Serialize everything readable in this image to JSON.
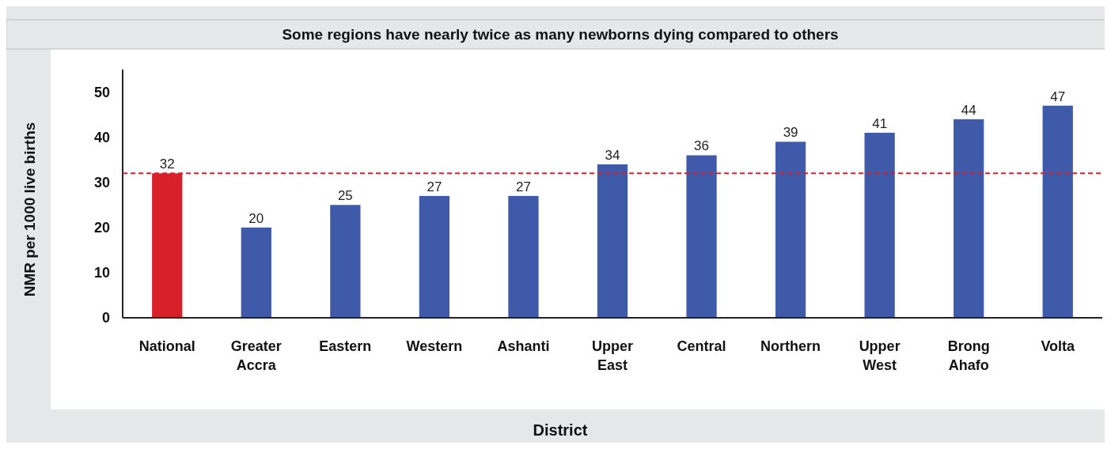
{
  "chart_data": {
    "type": "bar",
    "title": "Some regions have nearly twice as many newborns dying compared to others",
    "xlabel": "District",
    "ylabel": "NMR per 1000 live births",
    "categories": [
      "National",
      "Greater Accra",
      "Eastern",
      "Western",
      "Ashanti",
      "Upper East",
      "Central",
      "Northern",
      "Upper West",
      "Brong Ahafo",
      "Volta"
    ],
    "values": [
      32,
      20,
      25,
      27,
      27,
      34,
      36,
      39,
      41,
      44,
      47
    ],
    "colors": [
      "#d7202a",
      "#3f5aa8",
      "#3f5aa8",
      "#3f5aa8",
      "#3f5aa8",
      "#3f5aa8",
      "#3f5aa8",
      "#3f5aa8",
      "#3f5aa8",
      "#3f5aa8",
      "#3f5aa8"
    ],
    "ylim": [
      0,
      55
    ],
    "yticks": [
      0,
      10,
      20,
      30,
      40,
      50
    ],
    "grid": false,
    "data_labels": true,
    "ref_lines": [
      {
        "axis": "y",
        "value": 32,
        "color": "#d7202a",
        "line_style": "dashed"
      }
    ]
  }
}
